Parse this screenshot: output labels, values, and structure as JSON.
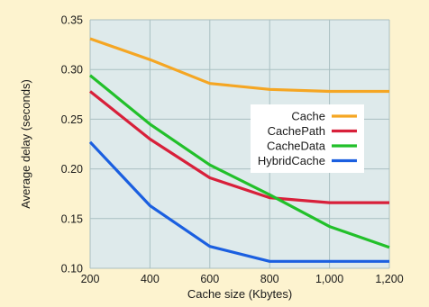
{
  "chart_data": {
    "type": "line",
    "xlabel": "Cache size (Kbytes)",
    "ylabel": "Average delay (seconds)",
    "xlim": [
      200,
      1200
    ],
    "ylim": [
      0.1,
      0.35
    ],
    "grid": true,
    "legend_position": "right",
    "x_tick_labels": [
      "200",
      "400",
      "600",
      "800",
      "1,000",
      "1,200"
    ],
    "x_ticks": [
      200,
      400,
      600,
      800,
      1000,
      1200
    ],
    "y_tick_labels": [
      "0.10",
      "0.15",
      "0.20",
      "0.25",
      "0.30",
      "0.35"
    ],
    "y_ticks": [
      0.1,
      0.15,
      0.2,
      0.25,
      0.3,
      0.35
    ],
    "x": [
      200,
      400,
      600,
      800,
      1000,
      1200
    ],
    "series": [
      {
        "name": "Cache",
        "color": "#f5a623",
        "values": [
          0.331,
          0.31,
          0.286,
          0.28,
          0.278,
          0.278
        ]
      },
      {
        "name": "CachePath",
        "color": "#d8203a",
        "values": [
          0.278,
          0.23,
          0.191,
          0.171,
          0.166,
          0.166
        ]
      },
      {
        "name": "CacheData",
        "color": "#22c02a",
        "values": [
          0.294,
          0.245,
          0.204,
          0.174,
          0.142,
          0.121
        ]
      },
      {
        "name": "HybridCache",
        "color": "#1b5fe0",
        "values": [
          0.227,
          0.163,
          0.122,
          0.107,
          0.107,
          0.107
        ]
      }
    ]
  },
  "colors": {
    "page_background": "#fdf3cf",
    "plot_background": "#deeaeb",
    "grid": "#a9bfc1",
    "legend_background": "#ffffff"
  }
}
